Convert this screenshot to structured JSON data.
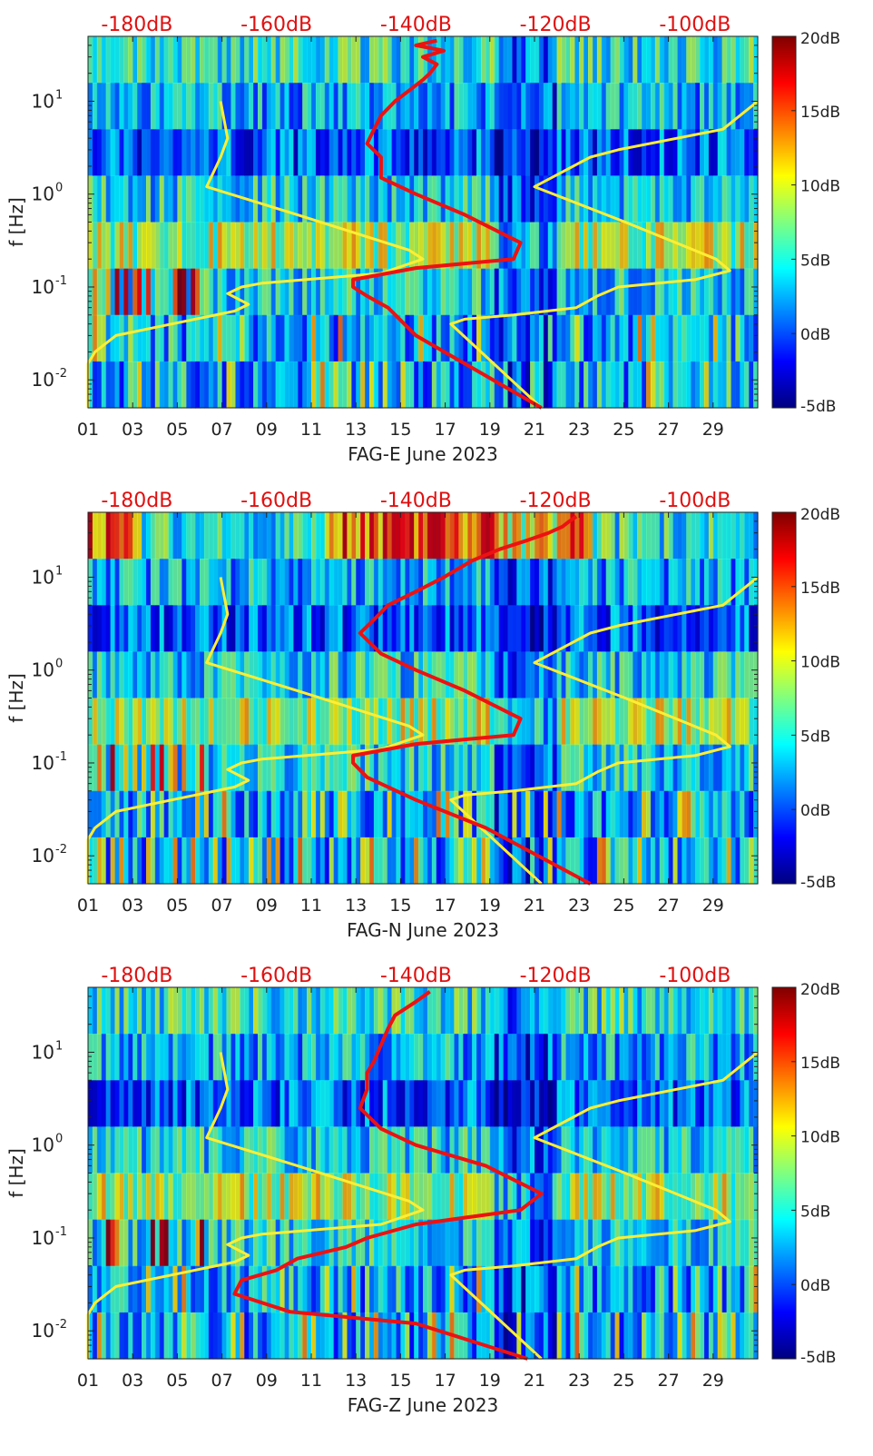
{
  "chart_data": [
    {
      "type": "heatmap",
      "xlabel": "FAG-E June 2023",
      "ylabel": "f [Hz]",
      "x_ticks": [
        "01",
        "03",
        "05",
        "07",
        "09",
        "11",
        "13",
        "15",
        "17",
        "19",
        "21",
        "23",
        "25",
        "27",
        "29"
      ],
      "y_ticks": [
        {
          "value": 0.01,
          "label": "10",
          "exp": "-2"
        },
        {
          "value": 0.1,
          "label": "10",
          "exp": "-1"
        },
        {
          "value": 1,
          "label": "10",
          "exp": "0"
        },
        {
          "value": 10,
          "label": "10",
          "exp": "1"
        }
      ],
      "xlim": [
        1,
        31
      ],
      "ylim": [
        0.005,
        50
      ],
      "y_scale": "log",
      "top_axis_labels": [
        "-180dB",
        "-160dB",
        "-140dB",
        "-120dB",
        "-100dB"
      ],
      "top_axis_values": [
        -180,
        -160,
        -140,
        -120,
        -100
      ],
      "top_axis_range": [
        -187,
        -91
      ],
      "colorbar": {
        "ticks": [
          "20dB",
          "15dB",
          "10dB",
          "5dB",
          "0dB",
          "-5dB"
        ],
        "values": [
          20,
          15,
          10,
          5,
          0,
          -5
        ],
        "range": [
          -5,
          20
        ]
      },
      "series": [
        {
          "color": "#ffee33",
          "axis": "top_db",
          "points": [
            [
              -187,
              0.005
            ],
            [
              -187,
              0.015
            ],
            [
              -186,
              0.02
            ],
            [
              -183,
              0.03
            ],
            [
              -175,
              0.04
            ],
            [
              -166,
              0.055
            ],
            [
              -164,
              0.065
            ],
            [
              -167,
              0.085
            ],
            [
              -165,
              0.1
            ],
            [
              -162,
              0.11
            ],
            [
              -145,
              0.14
            ],
            [
              -139,
              0.2
            ],
            [
              -141,
              0.25
            ],
            [
              -157,
              0.6
            ],
            [
              -170,
              1.2
            ],
            [
              -168,
              2.5
            ],
            [
              -167,
              4
            ],
            [
              -168,
              10
            ]
          ]
        },
        {
          "color": "#ffee33",
          "axis": "top_db",
          "points": [
            [
              -122,
              0.005
            ],
            [
              -135,
              0.04
            ],
            [
              -133,
              0.045
            ],
            [
              -126,
              0.05
            ],
            [
              -117,
              0.06
            ],
            [
              -114,
              0.08
            ],
            [
              -111,
              0.1
            ],
            [
              -100,
              0.12
            ],
            [
              -95,
              0.15
            ],
            [
              -97,
              0.2
            ],
            [
              -110,
              0.5
            ],
            [
              -123,
              1.2
            ],
            [
              -115,
              2.5
            ],
            [
              -111,
              3
            ],
            [
              -96,
              5
            ],
            [
              -91,
              10
            ]
          ]
        },
        {
          "color": "#ee1111",
          "axis": "top_db",
          "points": [
            [
              -122,
              0.005
            ],
            [
              -140,
              0.03
            ],
            [
              -144,
              0.06
            ],
            [
              -147,
              0.08
            ],
            [
              -149,
              0.1
            ],
            [
              -149,
              0.12
            ],
            [
              -140,
              0.16
            ],
            [
              -126,
              0.2
            ],
            [
              -125,
              0.3
            ],
            [
              -133,
              0.6
            ],
            [
              -140,
              1
            ],
            [
              -145,
              1.5
            ],
            [
              -145,
              2.5
            ],
            [
              -147,
              3.5
            ],
            [
              -146,
              5
            ],
            [
              -145,
              7
            ],
            [
              -143,
              10
            ],
            [
              -141,
              13
            ],
            [
              -139,
              17
            ],
            [
              -138,
              20
            ],
            [
              -137,
              25
            ],
            [
              -139,
              30
            ],
            [
              -136,
              35
            ],
            [
              -140,
              40
            ],
            [
              -137,
              45
            ]
          ]
        }
      ]
    },
    {
      "type": "heatmap",
      "xlabel": "FAG-N June 2023",
      "ylabel": "f [Hz]",
      "x_ticks": [
        "01",
        "03",
        "05",
        "07",
        "09",
        "11",
        "13",
        "15",
        "17",
        "19",
        "21",
        "23",
        "25",
        "27",
        "29"
      ],
      "y_ticks": [
        {
          "value": 0.01,
          "label": "10",
          "exp": "-2"
        },
        {
          "value": 0.1,
          "label": "10",
          "exp": "-1"
        },
        {
          "value": 1,
          "label": "10",
          "exp": "0"
        },
        {
          "value": 10,
          "label": "10",
          "exp": "1"
        }
      ],
      "xlim": [
        1,
        31
      ],
      "ylim": [
        0.005,
        50
      ],
      "y_scale": "log",
      "top_axis_labels": [
        "-180dB",
        "-160dB",
        "-140dB",
        "-120dB",
        "-100dB"
      ],
      "top_axis_values": [
        -180,
        -160,
        -140,
        -120,
        -100
      ],
      "top_axis_range": [
        -187,
        -91
      ],
      "colorbar": {
        "ticks": [
          "20dB",
          "15dB",
          "10dB",
          "5dB",
          "0dB",
          "-5dB"
        ],
        "values": [
          20,
          15,
          10,
          5,
          0,
          -5
        ],
        "range": [
          -5,
          20
        ]
      },
      "series": [
        {
          "color": "#ffee33",
          "axis": "top_db",
          "points": [
            [
              -187,
              0.005
            ],
            [
              -187,
              0.015
            ],
            [
              -186,
              0.02
            ],
            [
              -183,
              0.03
            ],
            [
              -175,
              0.04
            ],
            [
              -166,
              0.055
            ],
            [
              -164,
              0.065
            ],
            [
              -167,
              0.085
            ],
            [
              -165,
              0.1
            ],
            [
              -162,
              0.11
            ],
            [
              -145,
              0.14
            ],
            [
              -139,
              0.2
            ],
            [
              -141,
              0.25
            ],
            [
              -157,
              0.6
            ],
            [
              -170,
              1.2
            ],
            [
              -168,
              2.5
            ],
            [
              -167,
              4
            ],
            [
              -168,
              10
            ]
          ]
        },
        {
          "color": "#ffee33",
          "axis": "top_db",
          "points": [
            [
              -122,
              0.005
            ],
            [
              -135,
              0.04
            ],
            [
              -133,
              0.045
            ],
            [
              -126,
              0.05
            ],
            [
              -117,
              0.06
            ],
            [
              -114,
              0.08
            ],
            [
              -111,
              0.1
            ],
            [
              -100,
              0.12
            ],
            [
              -95,
              0.15
            ],
            [
              -97,
              0.2
            ],
            [
              -110,
              0.5
            ],
            [
              -123,
              1.2
            ],
            [
              -115,
              2.5
            ],
            [
              -111,
              3
            ],
            [
              -96,
              5
            ],
            [
              -91,
              10
            ]
          ]
        },
        {
          "color": "#ee1111",
          "axis": "top_db",
          "points": [
            [
              -115,
              0.005
            ],
            [
              -130,
              0.02
            ],
            [
              -140,
              0.04
            ],
            [
              -147,
              0.07
            ],
            [
              -149,
              0.1
            ],
            [
              -149,
              0.12
            ],
            [
              -140,
              0.16
            ],
            [
              -126,
              0.2
            ],
            [
              -125,
              0.3
            ],
            [
              -133,
              0.6
            ],
            [
              -140,
              1
            ],
            [
              -145,
              1.5
            ],
            [
              -148,
              2.5
            ],
            [
              -146,
              3.5
            ],
            [
              -144,
              5
            ],
            [
              -140,
              7
            ],
            [
              -136,
              10
            ],
            [
              -132,
              15
            ],
            [
              -128,
              20
            ],
            [
              -124,
              25
            ],
            [
              -121,
              30
            ],
            [
              -119,
              35
            ],
            [
              -118,
              40
            ],
            [
              -117,
              45
            ]
          ]
        }
      ]
    },
    {
      "type": "heatmap",
      "xlabel": "FAG-Z June 2023",
      "ylabel": "f [Hz]",
      "x_ticks": [
        "01",
        "03",
        "05",
        "07",
        "09",
        "11",
        "13",
        "15",
        "17",
        "19",
        "21",
        "23",
        "25",
        "27",
        "29"
      ],
      "y_ticks": [
        {
          "value": 0.01,
          "label": "10",
          "exp": "-2"
        },
        {
          "value": 0.1,
          "label": "10",
          "exp": "-1"
        },
        {
          "value": 1,
          "label": "10",
          "exp": "0"
        },
        {
          "value": 10,
          "label": "10",
          "exp": "1"
        }
      ],
      "xlim": [
        1,
        31
      ],
      "ylim": [
        0.005,
        50
      ],
      "y_scale": "log",
      "top_axis_labels": [
        "-180dB",
        "-160dB",
        "-140dB",
        "-120dB",
        "-100dB"
      ],
      "top_axis_values": [
        -180,
        -160,
        -140,
        -120,
        -100
      ],
      "top_axis_range": [
        -187,
        -91
      ],
      "colorbar": {
        "ticks": [
          "20dB",
          "15dB",
          "10dB",
          "5dB",
          "0dB",
          "-5dB"
        ],
        "values": [
          20,
          15,
          10,
          5,
          0,
          -5
        ],
        "range": [
          -5,
          20
        ]
      },
      "series": [
        {
          "color": "#ffee33",
          "axis": "top_db",
          "points": [
            [
              -187,
              0.005
            ],
            [
              -187,
              0.015
            ],
            [
              -186,
              0.02
            ],
            [
              -183,
              0.03
            ],
            [
              -175,
              0.04
            ],
            [
              -166,
              0.055
            ],
            [
              -164,
              0.065
            ],
            [
              -167,
              0.085
            ],
            [
              -165,
              0.1
            ],
            [
              -162,
              0.11
            ],
            [
              -145,
              0.14
            ],
            [
              -139,
              0.2
            ],
            [
              -141,
              0.25
            ],
            [
              -157,
              0.6
            ],
            [
              -170,
              1.2
            ],
            [
              -168,
              2.5
            ],
            [
              -167,
              4
            ],
            [
              -168,
              10
            ]
          ]
        },
        {
          "color": "#ffee33",
          "axis": "top_db",
          "points": [
            [
              -122,
              0.005
            ],
            [
              -135,
              0.04
            ],
            [
              -133,
              0.045
            ],
            [
              -126,
              0.05
            ],
            [
              -117,
              0.06
            ],
            [
              -114,
              0.08
            ],
            [
              -111,
              0.1
            ],
            [
              -100,
              0.12
            ],
            [
              -95,
              0.15
            ],
            [
              -97,
              0.2
            ],
            [
              -110,
              0.5
            ],
            [
              -123,
              1.2
            ],
            [
              -115,
              2.5
            ],
            [
              -111,
              3
            ],
            [
              -96,
              5
            ],
            [
              -91,
              10
            ]
          ]
        },
        {
          "color": "#ee1111",
          "axis": "top_db",
          "points": [
            [
              -124,
              0.005
            ],
            [
              -140,
              0.012
            ],
            [
              -158,
              0.016
            ],
            [
              -166,
              0.025
            ],
            [
              -165,
              0.035
            ],
            [
              -160,
              0.045
            ],
            [
              -157,
              0.06
            ],
            [
              -150,
              0.08
            ],
            [
              -147,
              0.1
            ],
            [
              -140,
              0.14
            ],
            [
              -125,
              0.2
            ],
            [
              -122,
              0.3
            ],
            [
              -130,
              0.6
            ],
            [
              -140,
              1
            ],
            [
              -145,
              1.5
            ],
            [
              -148,
              2.5
            ],
            [
              -147,
              4
            ],
            [
              -147,
              6
            ],
            [
              -146,
              8
            ],
            [
              -145,
              12
            ],
            [
              -144,
              18
            ],
            [
              -143,
              25
            ],
            [
              -140,
              35
            ],
            [
              -138,
              45
            ]
          ]
        }
      ]
    }
  ]
}
